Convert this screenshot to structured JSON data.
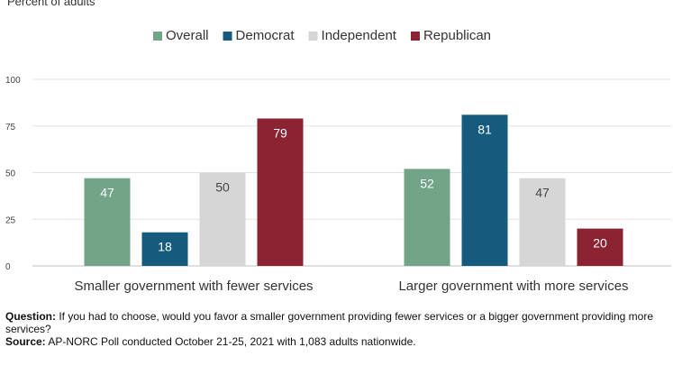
{
  "subtitle": "Percent of adults",
  "chart_data": {
    "type": "bar",
    "categories": [
      "Smaller government with fewer services",
      "Larger government with more services"
    ],
    "series": [
      {
        "name": "Overall",
        "color": "#72a487",
        "values": [
          47,
          52
        ]
      },
      {
        "name": "Democrat",
        "color": "#165b7d",
        "values": [
          18,
          81
        ]
      },
      {
        "name": "Independent",
        "color": "#d6d6d6",
        "values": [
          50,
          47
        ]
      },
      {
        "name": "Republican",
        "color": "#8b2332",
        "values": [
          79,
          20
        ]
      }
    ],
    "ylim": [
      0,
      100
    ],
    "yticks": [
      0,
      25,
      50,
      75,
      100
    ],
    "grid": true,
    "legend": "top-center",
    "label_colors": {
      "Overall": "#ffffff",
      "Democrat": "#ffffff",
      "Independent": "#444444",
      "Republican": "#ffffff"
    }
  },
  "notes": {
    "question_label": "Question:",
    "question_text": "If you had to choose, would you favor a smaller government providing fewer services or a bigger government providing more services?",
    "source_label": "Source:",
    "source_text": "AP-NORC Poll conducted October 21-25, 2021 with 1,083 adults nationwide."
  }
}
